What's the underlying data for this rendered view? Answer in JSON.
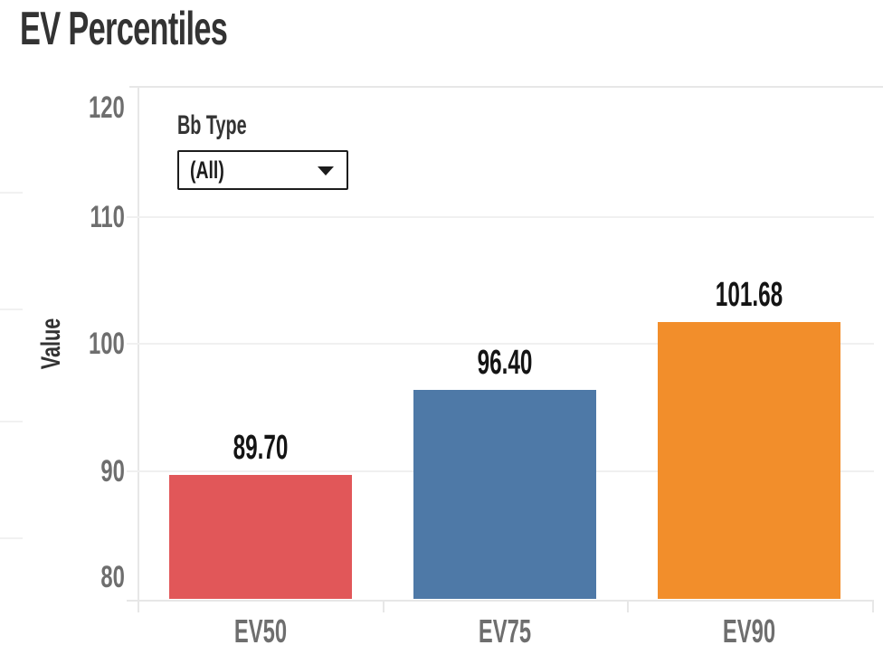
{
  "page": {
    "title": "EV Percentiles"
  },
  "filter": {
    "label": "Bb Type",
    "value": "(All)",
    "icon": "caret-down-icon"
  },
  "chart_data": {
    "type": "bar",
    "title": "EV Percentiles",
    "categories": [
      "EV50",
      "EV75",
      "EV90"
    ],
    "values": [
      89.7,
      96.4,
      101.68
    ],
    "value_labels": [
      "89.70",
      "96.40",
      "101.68"
    ],
    "bar_colors": [
      "#E15759",
      "#4E79A7",
      "#F28E2B"
    ],
    "xlabel": "",
    "ylabel": "Value",
    "yticks": [
      80,
      90,
      100,
      110,
      120
    ],
    "ytick_labels": [
      "80",
      "90",
      "100",
      "110",
      "120"
    ],
    "ylim": [
      79.7,
      120.3
    ],
    "grid": true,
    "legend": false,
    "accent_colors": {
      "title_text": "#333333",
      "axis_text": "#6e6e6e",
      "value_label_text": "#141414",
      "gridline": "#f0f0f0",
      "border": "#e7e7e7"
    }
  }
}
